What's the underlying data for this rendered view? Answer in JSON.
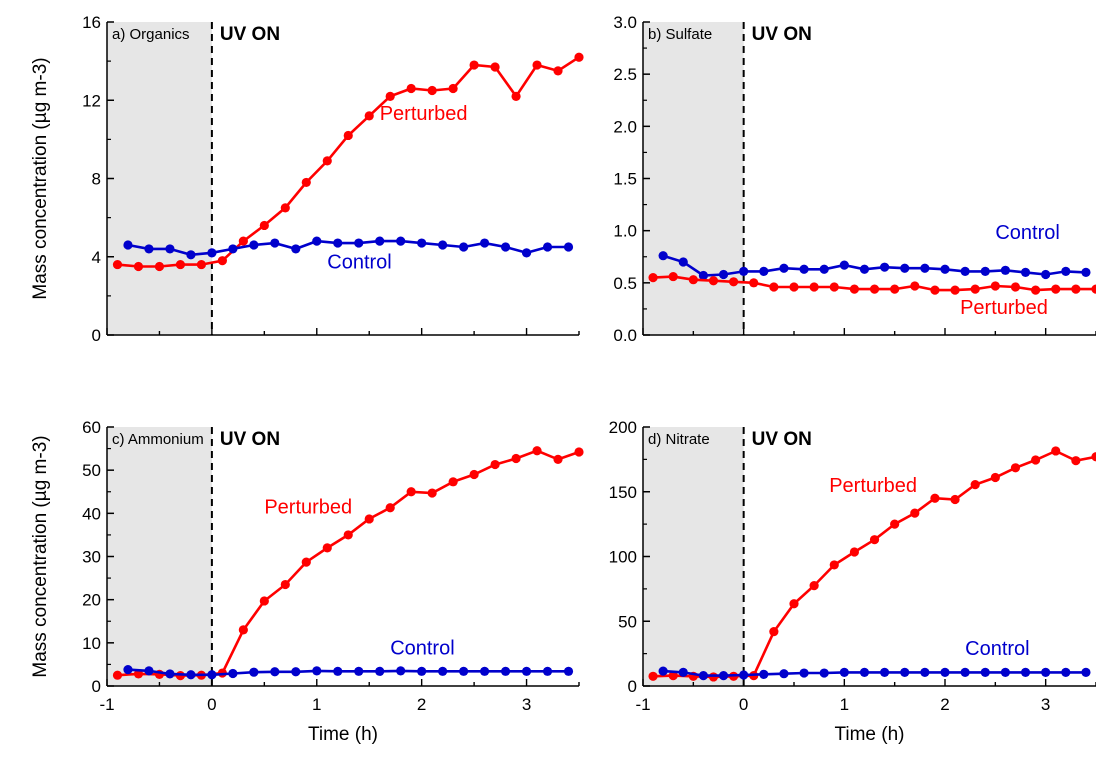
{
  "chart_data": [
    {
      "type": "line",
      "panel_label": "a) Organics",
      "annotation": "UV ON",
      "xlabel": "",
      "ylabel": "Mass concentration (µg m-3)",
      "xlim": [
        -1,
        3.5
      ],
      "ylim": [
        0,
        16
      ],
      "yticks": [
        "0",
        "4",
        "8",
        "12",
        "16"
      ],
      "xticks": [],
      "shaded_region": [
        -1,
        0
      ],
      "series": [
        {
          "name": "Perturbed",
          "color": "#ff0000",
          "x": [
            -0.9,
            -0.7,
            -0.5,
            -0.3,
            -0.1,
            0.1,
            0.3,
            0.5,
            0.7,
            0.9,
            1.1,
            1.3,
            1.5,
            1.7,
            1.9,
            2.1,
            2.3,
            2.5,
            2.7,
            2.9,
            3.1,
            3.3,
            3.5
          ],
          "values": [
            3.6,
            3.5,
            3.5,
            3.6,
            3.6,
            3.8,
            4.8,
            5.6,
            6.5,
            7.8,
            8.9,
            10.2,
            11.2,
            12.2,
            12.6,
            12.5,
            12.6,
            13.8,
            13.7,
            12.2,
            13.8,
            13.5,
            14.2
          ],
          "label_pos": [
            1.6,
            11.0
          ]
        },
        {
          "name": "Control",
          "color": "#0000cc",
          "x": [
            -0.8,
            -0.6,
            -0.4,
            -0.2,
            0.0,
            0.2,
            0.4,
            0.6,
            0.8,
            1.0,
            1.2,
            1.4,
            1.6,
            1.8,
            2.0,
            2.2,
            2.4,
            2.6,
            2.8,
            3.0,
            3.2,
            3.4
          ],
          "values": [
            4.6,
            4.4,
            4.4,
            4.1,
            4.2,
            4.4,
            4.6,
            4.7,
            4.4,
            4.8,
            4.7,
            4.7,
            4.8,
            4.8,
            4.7,
            4.6,
            4.5,
            4.7,
            4.5,
            4.2,
            4.5,
            4.5
          ],
          "label_pos": [
            1.1,
            3.4
          ]
        }
      ]
    },
    {
      "type": "line",
      "panel_label": "b) Sulfate",
      "annotation": "UV ON",
      "xlabel": "",
      "ylabel": "",
      "xlim": [
        -1,
        3.5
      ],
      "ylim": [
        0,
        3.0
      ],
      "yticks": [
        "0.0",
        "0.5",
        "1.0",
        "1.5",
        "2.0",
        "2.5",
        "3.0"
      ],
      "xticks": [],
      "shaded_region": [
        -1,
        0
      ],
      "series": [
        {
          "name": "Control",
          "color": "#0000cc",
          "x": [
            -0.8,
            -0.6,
            -0.4,
            -0.2,
            0.0,
            0.2,
            0.4,
            0.6,
            0.8,
            1.0,
            1.2,
            1.4,
            1.6,
            1.8,
            2.0,
            2.2,
            2.4,
            2.6,
            2.8,
            3.0,
            3.2,
            3.4
          ],
          "values": [
            0.76,
            0.7,
            0.57,
            0.58,
            0.61,
            0.61,
            0.64,
            0.63,
            0.63,
            0.67,
            0.63,
            0.65,
            0.64,
            0.64,
            0.63,
            0.61,
            0.61,
            0.62,
            0.6,
            0.58,
            0.61,
            0.6
          ],
          "label_pos": [
            2.5,
            0.92
          ]
        },
        {
          "name": "Perturbed",
          "color": "#ff0000",
          "x": [
            -0.9,
            -0.7,
            -0.5,
            -0.3,
            -0.1,
            0.1,
            0.3,
            0.5,
            0.7,
            0.9,
            1.1,
            1.3,
            1.5,
            1.7,
            1.9,
            2.1,
            2.3,
            2.5,
            2.7,
            2.9,
            3.1,
            3.3,
            3.5
          ],
          "values": [
            0.55,
            0.56,
            0.53,
            0.52,
            0.51,
            0.5,
            0.46,
            0.46,
            0.46,
            0.46,
            0.44,
            0.44,
            0.44,
            0.47,
            0.43,
            0.43,
            0.44,
            0.47,
            0.46,
            0.43,
            0.44,
            0.44,
            0.44
          ],
          "label_pos": [
            2.15,
            0.2
          ]
        }
      ]
    },
    {
      "type": "line",
      "panel_label": "c) Ammonium",
      "annotation": "UV ON",
      "xlabel": "Time (h)",
      "ylabel": "Mass concentration (µg m-3)",
      "xlim": [
        -1,
        3.5
      ],
      "ylim": [
        0,
        60
      ],
      "yticks": [
        "0",
        "10",
        "20",
        "30",
        "40",
        "50",
        "60"
      ],
      "xticks": [
        "-1",
        "0",
        "1",
        "2",
        "3"
      ],
      "shaded_region": [
        -1,
        0
      ],
      "series": [
        {
          "name": "Perturbed",
          "color": "#ff0000",
          "x": [
            -0.9,
            -0.7,
            -0.5,
            -0.3,
            -0.1,
            0.1,
            0.3,
            0.5,
            0.7,
            0.9,
            1.1,
            1.3,
            1.5,
            1.7,
            1.9,
            2.1,
            2.3,
            2.5,
            2.7,
            2.9,
            3.1,
            3.3,
            3.5
          ],
          "values": [
            2.5,
            2.8,
            2.7,
            2.4,
            2.5,
            3.0,
            13.0,
            19.7,
            23.5,
            28.7,
            32.0,
            35.0,
            38.7,
            41.3,
            45.0,
            44.7,
            47.3,
            49.0,
            51.3,
            52.7,
            54.5,
            52.5,
            54.2
          ],
          "label_pos": [
            0.5,
            40.0
          ]
        },
        {
          "name": "Control",
          "color": "#0000cc",
          "x": [
            -0.8,
            -0.6,
            -0.4,
            -0.2,
            0.0,
            0.2,
            0.4,
            0.6,
            0.8,
            1.0,
            1.2,
            1.4,
            1.6,
            1.8,
            2.0,
            2.2,
            2.4,
            2.6,
            2.8,
            3.0,
            3.2,
            3.4
          ],
          "values": [
            3.8,
            3.5,
            2.8,
            2.6,
            2.6,
            2.9,
            3.2,
            3.3,
            3.3,
            3.5,
            3.4,
            3.4,
            3.4,
            3.5,
            3.4,
            3.4,
            3.4,
            3.4,
            3.4,
            3.4,
            3.4,
            3.4
          ],
          "label_pos": [
            1.7,
            7.3
          ]
        }
      ]
    },
    {
      "type": "line",
      "panel_label": "d) Nitrate",
      "annotation": "UV ON",
      "xlabel": "Time (h)",
      "ylabel": "",
      "xlim": [
        -1,
        3.5
      ],
      "ylim": [
        0,
        200
      ],
      "yticks": [
        "0",
        "50",
        "100",
        "150",
        "200"
      ],
      "xticks": [
        "-1",
        "0",
        "1",
        "2",
        "3"
      ],
      "shaded_region": [
        -1,
        0
      ],
      "series": [
        {
          "name": "Perturbed",
          "color": "#ff0000",
          "x": [
            -0.9,
            -0.7,
            -0.5,
            -0.3,
            -0.1,
            0.1,
            0.3,
            0.5,
            0.7,
            0.9,
            1.1,
            1.3,
            1.5,
            1.7,
            1.9,
            2.1,
            2.3,
            2.5,
            2.7,
            2.9,
            3.1,
            3.3,
            3.5
          ],
          "values": [
            7.5,
            8.0,
            7.5,
            7.0,
            7.5,
            8.0,
            42.0,
            63.5,
            77.5,
            93.5,
            103.5,
            113.0,
            125.0,
            133.5,
            145.0,
            144.0,
            155.5,
            161.0,
            168.5,
            174.5,
            181.5,
            174.0,
            177.0
          ],
          "label_pos": [
            0.85,
            150.0
          ]
        },
        {
          "name": "Control",
          "color": "#0000cc",
          "x": [
            -0.8,
            -0.6,
            -0.4,
            -0.2,
            0.0,
            0.2,
            0.4,
            0.6,
            0.8,
            1.0,
            1.2,
            1.4,
            1.6,
            1.8,
            2.0,
            2.2,
            2.4,
            2.6,
            2.8,
            3.0,
            3.2,
            3.4
          ],
          "values": [
            11.5,
            10.5,
            8.0,
            8.0,
            8.5,
            9.0,
            9.5,
            10.0,
            10.0,
            10.5,
            10.5,
            10.5,
            10.5,
            10.5,
            10.5,
            10.5,
            10.5,
            10.5,
            10.5,
            10.5,
            10.5,
            10.5
          ],
          "label_pos": [
            2.2,
            24.0
          ]
        }
      ]
    }
  ]
}
